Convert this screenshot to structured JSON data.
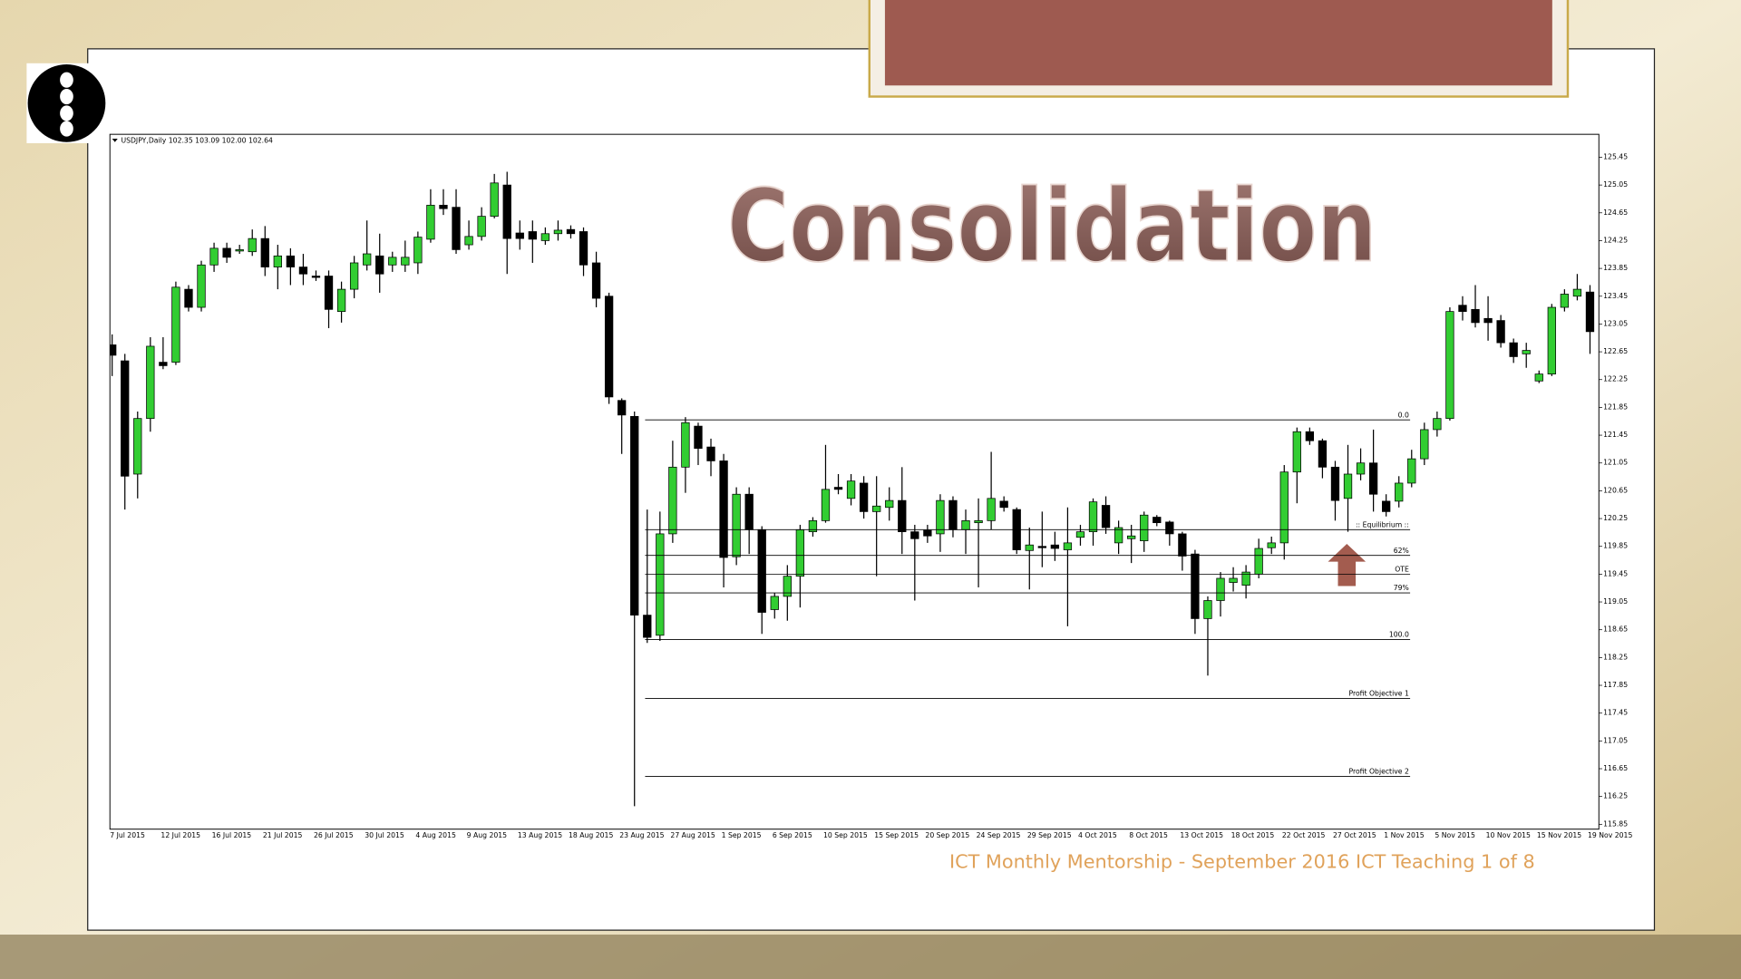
{
  "chart_data": {
    "type": "candlestick",
    "title": "Consolidation",
    "header": "USDJPY,Daily  102.35 103.09 102.00 102.64",
    "footer": "ICT Monthly Mentorship - September 2016 ICT Teaching 1 of 8",
    "up_color": "#32cd32",
    "down_color": "#000000",
    "categories": [
      "7 Jul 2015",
      null,
      null,
      null,
      "12 Jul 2015",
      null,
      null,
      null,
      "16 Jul 2015",
      null,
      null,
      null,
      "21 Jul 2015",
      null,
      null,
      null,
      "26 Jul 2015",
      null,
      null,
      null,
      "30 Jul 2015",
      null,
      null,
      null,
      "4 Aug 2015",
      null,
      null,
      null,
      "9 Aug 2015",
      null,
      null,
      null,
      "13 Aug 2015",
      null,
      null,
      null,
      "18 Aug 2015",
      null,
      null,
      null,
      "23 Aug 2015",
      null,
      null,
      null,
      "27 Aug 2015",
      null,
      null,
      null,
      "1 Sep 2015",
      null,
      null,
      null,
      "6 Sep 2015",
      null,
      null,
      null,
      "10 Sep 2015",
      null,
      null,
      null,
      "15 Sep 2015",
      null,
      null,
      null,
      "20 Sep 2015",
      null,
      null,
      null,
      "24 Sep 2015",
      null,
      null,
      null,
      "29 Sep 2015",
      null,
      null,
      null,
      "4 Oct 2015",
      null,
      null,
      null,
      "8 Oct 2015",
      null,
      null,
      null,
      "13 Oct 2015",
      null,
      null,
      null,
      "18 Oct 2015",
      null,
      null,
      null,
      "22 Oct 2015",
      null,
      null,
      null,
      "27 Oct 2015",
      null,
      null,
      null,
      "1 Nov 2015",
      null,
      null,
      null,
      "5 Nov 2015",
      null,
      null,
      null,
      "10 Nov 2015",
      null,
      null,
      null,
      "15 Nov 2015",
      null,
      null,
      null,
      "19 Nov 2015"
    ],
    "open": [
      122.75,
      122.52,
      120.89,
      121.69,
      122.5,
      122.5,
      123.55,
      123.29,
      123.9,
      124.14,
      124.1,
      124.09,
      124.28,
      123.87,
      124.03,
      123.87,
      123.74,
      123.74,
      123.23,
      123.55,
      123.9,
      124.03,
      123.9,
      123.9,
      123.93,
      124.27,
      124.76,
      124.73,
      124.19,
      124.31,
      124.6,
      125.05,
      124.36,
      124.38,
      124.25,
      124.35,
      124.41,
      124.38,
      123.93,
      123.45,
      121.95,
      121.72,
      118.86,
      118.57,
      120.03,
      120.99,
      121.58,
      121.28,
      121.08,
      119.7,
      120.6,
      120.09,
      118.94,
      119.13,
      119.42,
      120.06,
      120.22,
      120.7,
      120.54,
      120.76,
      120.35,
      120.41,
      120.51,
      120.06,
      120.08,
      120.03,
      120.51,
      120.09,
      120.19,
      120.22,
      120.5,
      120.38,
      119.79,
      119.85,
      119.87,
      119.8,
      119.98,
      120.06,
      120.44,
      119.9,
      119.96,
      119.93,
      120.27,
      120.2,
      120.03,
      119.74,
      118.81,
      119.07,
      119.33,
      119.29,
      119.45,
      119.83,
      119.9,
      120.92,
      121.5,
      121.37,
      120.99,
      120.54,
      120.89,
      121.05,
      120.5,
      120.5,
      120.76,
      121.11,
      121.53,
      121.69,
      123.32,
      123.26,
      123.13,
      123.1,
      122.78,
      122.62,
      122.23,
      122.33,
      123.29,
      123.45,
      123.51
    ],
    "high": [
      122.9,
      122.62,
      121.79,
      122.86,
      122.86,
      123.66,
      123.61,
      123.96,
      124.22,
      124.22,
      124.19,
      124.41,
      124.46,
      124.19,
      124.14,
      124.06,
      123.82,
      123.82,
      123.66,
      124.03,
      124.54,
      124.35,
      124.09,
      124.25,
      124.38,
      124.99,
      124.99,
      124.99,
      124.54,
      124.73,
      125.21,
      125.24,
      124.54,
      124.54,
      124.44,
      124.54,
      124.47,
      124.44,
      124.09,
      123.5,
      121.98,
      121.79,
      120.38,
      120.35,
      121.37,
      121.71,
      121.63,
      121.4,
      121.18,
      120.7,
      120.7,
      120.14,
      119.18,
      119.58,
      120.16,
      120.27,
      121.31,
      120.89,
      120.89,
      120.86,
      120.86,
      120.7,
      120.99,
      120.16,
      120.16,
      120.6,
      120.57,
      120.38,
      120.54,
      121.21,
      120.57,
      120.41,
      120.12,
      120.35,
      120.06,
      120.41,
      120.16,
      120.54,
      120.57,
      120.22,
      120.16,
      120.35,
      120.3,
      120.22,
      120.06,
      119.8,
      119.13,
      119.48,
      119.55,
      119.58,
      119.96,
      119.99,
      121.02,
      121.56,
      121.56,
      121.4,
      121.08,
      121.31,
      121.26,
      121.53,
      120.6,
      120.86,
      121.24,
      121.63,
      121.79,
      123.29,
      123.45,
      123.61,
      123.45,
      123.18,
      122.84,
      122.78,
      122.38,
      123.34,
      123.55,
      123.77,
      123.61
    ],
    "low": [
      122.3,
      120.38,
      120.54,
      121.5,
      122.4,
      122.46,
      123.23,
      123.23,
      123.8,
      123.93,
      124.06,
      124.03,
      123.74,
      123.55,
      123.61,
      123.61,
      123.67,
      122.99,
      123.07,
      123.42,
      123.82,
      123.5,
      123.8,
      123.8,
      123.77,
      124.22,
      124.62,
      124.06,
      124.12,
      124.25,
      124.57,
      123.77,
      124.12,
      123.93,
      124.19,
      124.25,
      124.28,
      123.74,
      123.29,
      121.9,
      121.18,
      116.11,
      118.46,
      118.49,
      119.9,
      120.62,
      121.02,
      120.86,
      119.26,
      119.58,
      119.74,
      118.59,
      118.81,
      118.78,
      118.97,
      119.99,
      120.19,
      120.6,
      120.44,
      120.25,
      119.42,
      120.22,
      119.74,
      119.07,
      119.9,
      119.77,
      119.98,
      119.74,
      119.26,
      120.09,
      120.35,
      119.74,
      119.23,
      119.55,
      119.64,
      118.7,
      119.86,
      119.86,
      120.03,
      119.74,
      119.61,
      119.77,
      120.14,
      119.86,
      119.5,
      118.59,
      117.99,
      118.84,
      119.2,
      119.1,
      119.39,
      119.74,
      119.66,
      120.47,
      121.31,
      120.83,
      120.22,
      120.06,
      120.8,
      120.35,
      120.28,
      120.41,
      120.7,
      121.02,
      121.43,
      121.66,
      123.1,
      123.0,
      122.81,
      122.71,
      122.49,
      122.42,
      122.2,
      122.3,
      123.23,
      123.39,
      122.62
    ],
    "close": [
      122.6,
      120.86,
      121.69,
      122.73,
      122.45,
      123.58,
      123.29,
      123.9,
      124.14,
      124.01,
      124.12,
      124.28,
      123.87,
      124.03,
      123.87,
      123.77,
      123.72,
      123.26,
      123.55,
      123.93,
      124.06,
      123.77,
      124.01,
      124.01,
      124.3,
      124.76,
      124.71,
      124.12,
      124.31,
      124.6,
      125.08,
      124.28,
      124.28,
      124.27,
      124.35,
      124.4,
      124.35,
      123.9,
      123.42,
      122.0,
      121.74,
      118.86,
      118.54,
      120.03,
      120.99,
      121.63,
      121.26,
      121.08,
      119.69,
      120.6,
      120.09,
      118.9,
      119.13,
      119.42,
      120.09,
      120.22,
      120.67,
      120.67,
      120.79,
      120.35,
      120.43,
      120.51,
      120.06,
      119.96,
      120.0,
      120.51,
      120.09,
      120.22,
      120.22,
      120.54,
      120.41,
      119.8,
      119.87,
      119.83,
      119.82,
      119.9,
      120.06,
      120.49,
      120.12,
      120.12,
      120.0,
      120.3,
      120.19,
      120.03,
      119.71,
      118.81,
      119.07,
      119.39,
      119.39,
      119.48,
      119.82,
      119.9,
      120.92,
      121.5,
      121.37,
      120.99,
      120.51,
      120.89,
      121.05,
      120.6,
      120.35,
      120.76,
      121.11,
      121.53,
      121.69,
      123.23,
      123.23,
      123.07,
      123.07,
      122.78,
      122.58,
      122.67,
      122.33,
      123.29,
      123.48,
      123.55,
      122.94
    ],
    "ylim": [
      115.78,
      125.78
    ],
    "yticks": [
      125.45,
      125.05,
      124.65,
      124.25,
      123.85,
      123.45,
      123.05,
      122.65,
      122.25,
      121.85,
      121.45,
      121.05,
      120.65,
      120.25,
      119.85,
      119.45,
      119.05,
      118.65,
      118.25,
      117.85,
      117.45,
      117.05,
      116.65,
      116.25,
      115.85
    ],
    "levels": [
      {
        "label": "0.0",
        "value": 121.67
      },
      {
        "label": ":: Equilibrium ::",
        "value": 120.09
      },
      {
        "label": "62%",
        "value": 119.72
      },
      {
        "label": "OTE",
        "value": 119.45
      },
      {
        "label": "79%",
        "value": 119.18
      },
      {
        "label": "100.0",
        "value": 118.51
      },
      {
        "label": "Profit Objective 1",
        "value": 117.66
      },
      {
        "label": "Profit Objective 2",
        "value": 116.54
      }
    ]
  }
}
